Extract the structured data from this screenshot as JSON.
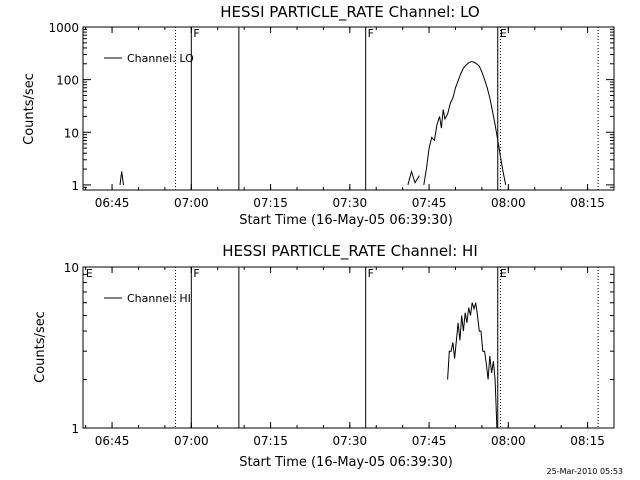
{
  "timestamp": "25-Mar-2010 05:53",
  "chart_data": [
    {
      "type": "line",
      "title": "HESSI PARTICLE_RATE Channel: LO",
      "xlabel": "Start Time (16-May-05 06:39:30)",
      "ylabel": "Counts/sec",
      "y_scale": "log",
      "xlim": [
        "06:39:30",
        "08:20:00"
      ],
      "ylim": [
        0.8,
        1000
      ],
      "x_ticks": [
        "06:45",
        "07:00",
        "07:15",
        "07:30",
        "07:45",
        "08:00",
        "08:15"
      ],
      "y_ticks": [
        "1",
        "10",
        "100",
        "1000"
      ],
      "legend": {
        "position": "top-left",
        "entries": [
          "Channel: LO"
        ]
      },
      "flag_labels": [
        {
          "text": "F",
          "time": "07:00:00"
        },
        {
          "text": "F",
          "time": "07:33:00"
        },
        {
          "text": "E",
          "time": "07:58:00"
        }
      ],
      "vertical_lines": [
        {
          "time": "06:57:00",
          "style": "dotted"
        },
        {
          "time": "07:00:00",
          "style": "solid"
        },
        {
          "time": "07:09:00",
          "style": "solid"
        },
        {
          "time": "07:33:00",
          "style": "solid"
        },
        {
          "time": "07:58:00",
          "style": "solid"
        },
        {
          "time": "07:58:30",
          "style": "dotted"
        },
        {
          "time": "08:17:00",
          "style": "dotted"
        }
      ],
      "series": [
        {
          "name": "Channel: LO",
          "segments": [
            [
              [
                "06:46:30",
                1.0
              ],
              [
                "06:46:50",
                1.8
              ],
              [
                "06:47:10",
                1.0
              ]
            ],
            [
              [
                "07:41:00",
                1.0
              ],
              [
                "07:41:40",
                1.8
              ],
              [
                "07:42:20",
                1.1
              ],
              [
                "07:43:10",
                1.5
              ]
            ],
            [
              [
                "07:44:00",
                1.0
              ],
              [
                "07:44:30",
                2.0
              ],
              [
                "07:45:00",
                5.0
              ],
              [
                "07:45:30",
                8.0
              ],
              [
                "07:46:00",
                7.0
              ],
              [
                "07:46:30",
                14.0
              ],
              [
                "07:47:00",
                20.0
              ],
              [
                "07:47:20",
                12.0
              ],
              [
                "07:47:40",
                27.0
              ],
              [
                "07:48:00",
                18.0
              ],
              [
                "07:48:30",
                22.0
              ],
              [
                "07:49:00",
                35.0
              ],
              [
                "07:49:30",
                45.0
              ],
              [
                "07:50:00",
                70.0
              ],
              [
                "07:50:30",
                95.0
              ],
              [
                "07:51:00",
                130.0
              ],
              [
                "07:51:30",
                165.0
              ],
              [
                "07:52:00",
                190.0
              ],
              [
                "07:52:30",
                210.0
              ],
              [
                "07:53:00",
                220.0
              ],
              [
                "07:53:30",
                215.0
              ],
              [
                "07:54:00",
                200.0
              ],
              [
                "07:54:30",
                180.0
              ],
              [
                "07:55:00",
                140.0
              ],
              [
                "07:55:30",
                100.0
              ],
              [
                "07:56:00",
                70.0
              ],
              [
                "07:56:30",
                45.0
              ],
              [
                "07:57:00",
                25.0
              ],
              [
                "07:57:30",
                14.0
              ],
              [
                "07:58:00",
                7.0
              ],
              [
                "07:58:30",
                3.5
              ],
              [
                "07:59:00",
                1.8
              ],
              [
                "07:59:30",
                1.0
              ]
            ]
          ]
        }
      ]
    },
    {
      "type": "line",
      "title": "HESSI PARTICLE_RATE Channel: HI",
      "xlabel": "Start Time (16-May-05 06:39:30)",
      "ylabel": "Counts/sec",
      "y_scale": "log",
      "xlim": [
        "06:39:30",
        "08:20:00"
      ],
      "ylim": [
        1,
        10
      ],
      "x_ticks": [
        "06:45",
        "07:00",
        "07:15",
        "07:30",
        "07:45",
        "08:00",
        "08:15"
      ],
      "y_ticks": [
        "1",
        "10"
      ],
      "legend": {
        "position": "top-left",
        "entries": [
          "Channel: HI"
        ]
      },
      "flag_labels": [
        {
          "text": "E",
          "time": "06:39:40"
        },
        {
          "text": "F",
          "time": "07:00:00"
        },
        {
          "text": "F",
          "time": "07:33:00"
        },
        {
          "text": "E",
          "time": "07:58:00"
        }
      ],
      "vertical_lines": [
        {
          "time": "06:57:00",
          "style": "dotted"
        },
        {
          "time": "07:00:00",
          "style": "solid"
        },
        {
          "time": "07:09:00",
          "style": "solid"
        },
        {
          "time": "07:33:00",
          "style": "solid"
        },
        {
          "time": "07:58:00",
          "style": "solid"
        },
        {
          "time": "07:58:30",
          "style": "dotted"
        },
        {
          "time": "08:17:00",
          "style": "dotted"
        }
      ],
      "series": [
        {
          "name": "Channel: HI",
          "segments": [
            [
              [
                "07:48:30",
                2.0
              ],
              [
                "07:48:50",
                3.0
              ],
              [
                "07:49:10",
                3.0
              ],
              [
                "07:49:30",
                3.4
              ],
              [
                "07:49:50",
                2.7
              ],
              [
                "07:50:10",
                3.5
              ],
              [
                "07:50:30",
                4.5
              ],
              [
                "07:50:50",
                3.5
              ],
              [
                "07:51:10",
                5.0
              ],
              [
                "07:51:30",
                4.0
              ],
              [
                "07:51:50",
                5.2
              ],
              [
                "07:52:10",
                4.5
              ],
              [
                "07:52:30",
                5.6
              ],
              [
                "07:52:50",
                5.0
              ],
              [
                "07:53:10",
                6.0
              ],
              [
                "07:53:30",
                5.5
              ],
              [
                "07:53:50",
                6.0
              ],
              [
                "07:54:10",
                5.0
              ],
              [
                "07:54:30",
                4.0
              ],
              [
                "07:54:50",
                4.0
              ],
              [
                "07:55:10",
                3.0
              ],
              [
                "07:55:30",
                3.0
              ],
              [
                "07:55:50",
                2.5
              ],
              [
                "07:56:10",
                2.0
              ],
              [
                "07:56:30",
                2.8
              ],
              [
                "07:56:50",
                2.2
              ],
              [
                "07:57:10",
                2.6
              ],
              [
                "07:57:30",
                2.0
              ],
              [
                "07:57:50",
                1.0
              ]
            ]
          ]
        }
      ]
    }
  ]
}
